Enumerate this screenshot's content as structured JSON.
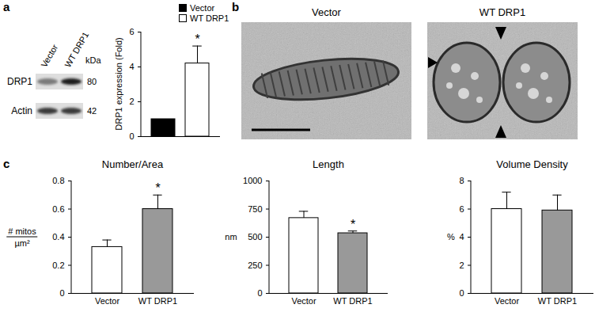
{
  "panel_labels": [
    "a",
    "b",
    "c"
  ],
  "blot": {
    "lanes": [
      "Vector",
      "WT DRP1"
    ],
    "unit": "kDa",
    "rows": [
      {
        "label": "DRP1",
        "kDa": 80
      },
      {
        "label": "Actin",
        "kDa": 42
      }
    ]
  },
  "micrographs": {
    "titles": [
      "Vector",
      "WT DRP1"
    ]
  },
  "chart_data": [
    {
      "type": "bar",
      "ylabel": "DRP1 expression (Fold)",
      "categories": [
        "Vector",
        "WT DRP1"
      ],
      "values": [
        1,
        4.2
      ],
      "errors": [
        null,
        1.0
      ],
      "colors": [
        "#000000",
        "#ffffff"
      ],
      "ylim": [
        0,
        6
      ],
      "yticks": [
        0,
        2,
        4,
        6
      ],
      "legend": "top",
      "tick_labels": "y",
      "annotations": [
        {
          "category": "WT DRP1",
          "text": "*"
        }
      ]
    },
    {
      "type": "bar",
      "title": "Number/Area",
      "ylabel": [
        "# mitos",
        "µm²"
      ],
      "categories": [
        "Vector",
        "WT DRP1"
      ],
      "values": [
        0.33,
        0.6
      ],
      "errors": [
        0.05,
        0.1
      ],
      "colors": [
        "#ffffff",
        "#999999"
      ],
      "ylim": [
        0,
        0.8
      ],
      "yticks": [
        0,
        0.2,
        0.4,
        0.6,
        0.8
      ],
      "annotations": [
        {
          "category": "WT DRP1",
          "text": "*"
        }
      ]
    },
    {
      "type": "bar",
      "title": "Length",
      "ylabel": "nm",
      "categories": [
        "Vector",
        "WT DRP1"
      ],
      "values": [
        670,
        535
      ],
      "errors": [
        60,
        20
      ],
      "colors": [
        "#ffffff",
        "#999999"
      ],
      "ylim": [
        0,
        1000
      ],
      "yticks": [
        0,
        250,
        500,
        750,
        1000
      ],
      "annotations": [
        {
          "category": "WT DRP1",
          "text": "*"
        }
      ]
    },
    {
      "type": "bar",
      "title": "Volume Density",
      "ylabel": "%",
      "categories": [
        "Vector",
        "WT DRP1"
      ],
      "values": [
        6.0,
        5.9
      ],
      "errors": [
        1.2,
        1.1
      ],
      "colors": [
        "#ffffff",
        "#999999"
      ],
      "ylim": [
        0,
        8
      ],
      "yticks": [
        0,
        2,
        4,
        6,
        8
      ]
    }
  ]
}
